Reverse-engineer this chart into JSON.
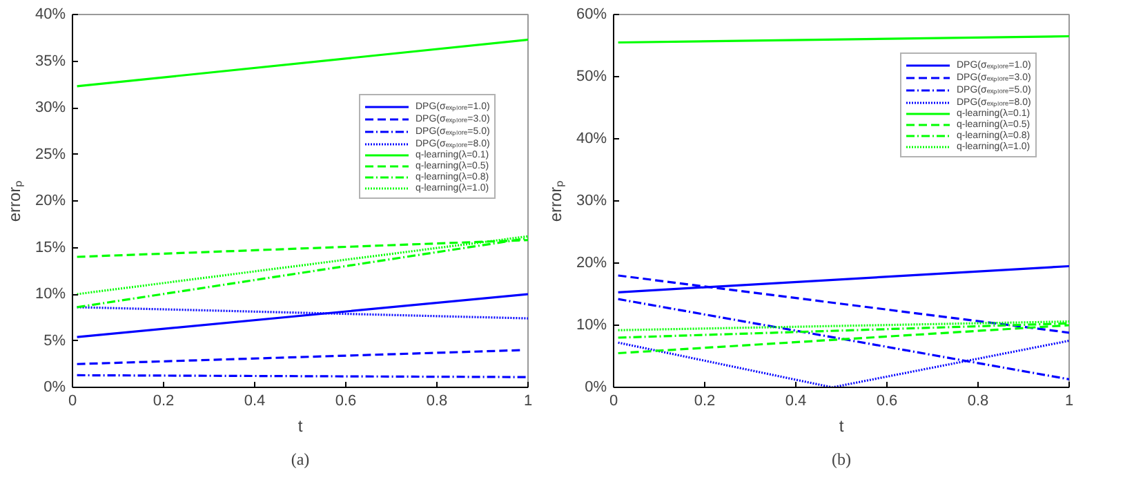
{
  "chart_data": [
    {
      "type": "line",
      "xlabel": "t",
      "ylabel": "errorₚ",
      "annotations": [
        "(a)"
      ],
      "xlim": [
        0,
        1
      ],
      "xticks": [
        0,
        0.2,
        0.4,
        0.6,
        0.8,
        1
      ],
      "ylim": [
        0,
        40
      ],
      "yticks": [
        {
          "value": 0,
          "label": "0%"
        },
        {
          "value": 5,
          "label": "5%"
        },
        {
          "value": 10,
          "label": "10%"
        },
        {
          "value": 15,
          "label": "15%"
        },
        {
          "value": 20,
          "label": "20%"
        },
        {
          "value": 25,
          "label": "25%"
        },
        {
          "value": 30,
          "label": "30%"
        },
        {
          "value": 35,
          "label": "35%"
        },
        {
          "value": 40,
          "label": "40%"
        }
      ],
      "grid": false,
      "legend": "right",
      "marker": "none",
      "series": [
        {
          "name": "DPG(σₑₓₚₗₒᵣₑ=1.0)",
          "color": "#0000ff",
          "line_style": "solid",
          "x": [
            0.01,
            1
          ],
          "values": [
            5.4,
            10.0
          ]
        },
        {
          "name": "DPG(σₑₓₚₗₒᵣₑ=3.0)",
          "color": "#0000ff",
          "line_style": "dashed",
          "x": [
            0.01,
            0.99
          ],
          "values": [
            2.5,
            4.0
          ]
        },
        {
          "name": "DPG(σₑₓₚₗₒᵣₑ=5.0)",
          "color": "#0000ff",
          "line_style": "dashdot",
          "x": [
            0.01,
            1
          ],
          "values": [
            1.3,
            1.1
          ]
        },
        {
          "name": "DPG(σₑₓₚₗₒᵣₑ=8.0)",
          "color": "#0000ff",
          "line_style": "dotted",
          "x": [
            0.01,
            1
          ],
          "values": [
            8.6,
            7.4
          ]
        },
        {
          "name": "q-learning(λ=0.1)",
          "color": "#00ff00",
          "line_style": "solid",
          "x": [
            0.01,
            1
          ],
          "values": [
            32.3,
            37.3
          ]
        },
        {
          "name": "q-learning(λ=0.5)",
          "color": "#00ff00",
          "line_style": "dashed",
          "x": [
            0.01,
            1
          ],
          "values": [
            14.0,
            15.8
          ]
        },
        {
          "name": "q-learning(λ=0.8)",
          "color": "#00ff00",
          "line_style": "dashdot",
          "x": [
            0.01,
            1
          ],
          "values": [
            8.6,
            16.0
          ]
        },
        {
          "name": "q-learning(λ=1.0)",
          "color": "#00ff00",
          "line_style": "dotted",
          "x": [
            0.01,
            1
          ],
          "values": [
            10.0,
            16.2
          ]
        }
      ]
    },
    {
      "type": "line",
      "xlabel": "t",
      "ylabel": "errorₚ",
      "annotations": [
        "(b)"
      ],
      "xlim": [
        0,
        1
      ],
      "xticks": [
        0,
        0.2,
        0.4,
        0.6,
        0.8,
        1
      ],
      "ylim": [
        0,
        60
      ],
      "yticks": [
        {
          "value": 0,
          "label": "0%"
        },
        {
          "value": 10,
          "label": "10%"
        },
        {
          "value": 20,
          "label": "20%"
        },
        {
          "value": 30,
          "label": "30%"
        },
        {
          "value": 40,
          "label": "40%"
        },
        {
          "value": 50,
          "label": "50%"
        },
        {
          "value": 60,
          "label": "60%"
        }
      ],
      "grid": false,
      "legend": "top right",
      "marker": "none",
      "series": [
        {
          "name": "DPG(σₑₓₚₗₒᵣₑ=1.0)",
          "color": "#0000ff",
          "line_style": "solid",
          "x": [
            0.01,
            1
          ],
          "values": [
            15.3,
            19.5
          ]
        },
        {
          "name": "DPG(σₑₓₚₗₒᵣₑ=3.0)",
          "color": "#0000ff",
          "line_style": "dashed",
          "x": [
            0.01,
            1
          ],
          "values": [
            18.0,
            8.8
          ]
        },
        {
          "name": "DPG(σₑₓₚₗₒᵣₑ=5.0)",
          "color": "#0000ff",
          "line_style": "dashdot",
          "x": [
            0.01,
            1
          ],
          "values": [
            14.2,
            1.3
          ]
        },
        {
          "name": "DPG(σₑₓₚₗₒᵣₑ=8.0)",
          "color": "#0000ff",
          "line_style": "dotted",
          "x": [
            0.01,
            0.48,
            1
          ],
          "values": [
            7.2,
            0,
            7.5
          ]
        },
        {
          "name": "q-learning(λ=0.1)",
          "color": "#00ff00",
          "line_style": "solid",
          "x": [
            0.01,
            1
          ],
          "values": [
            55.5,
            56.5
          ]
        },
        {
          "name": "q-learning(λ=0.5)",
          "color": "#00ff00",
          "line_style": "dashed",
          "x": [
            0.01,
            1
          ],
          "values": [
            5.5,
            10.0
          ]
        },
        {
          "name": "q-learning(λ=0.8)",
          "color": "#00ff00",
          "line_style": "dashdot",
          "x": [
            0.01,
            1
          ],
          "values": [
            8.0,
            10.3
          ]
        },
        {
          "name": "q-learning(λ=1.0)",
          "color": "#00ff00",
          "line_style": "dotted",
          "x": [
            0.01,
            1
          ],
          "values": [
            9.2,
            10.6
          ]
        }
      ]
    }
  ]
}
